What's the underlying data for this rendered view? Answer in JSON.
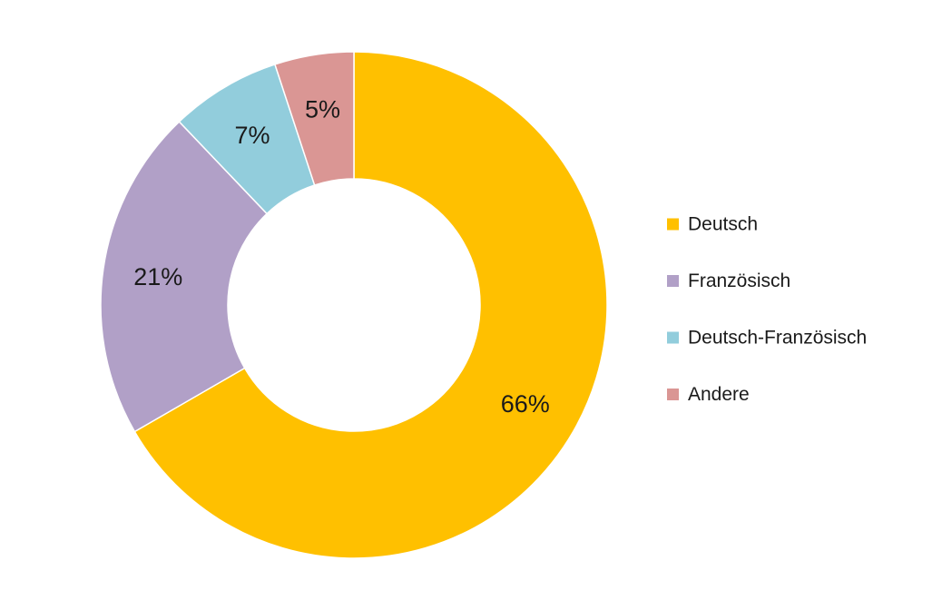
{
  "chart_data": {
    "type": "pie",
    "variant": "donut",
    "title": "",
    "labels": [
      "Deutsch",
      "Französisch",
      "Deutsch-Französisch",
      "Andere"
    ],
    "values": [
      66,
      21,
      7,
      5
    ],
    "value_labels": [
      "66%",
      "21%",
      "7%",
      "5%"
    ],
    "colors": [
      "#FFC000",
      "#B1A0C7",
      "#92CDDC",
      "#DA9694"
    ],
    "start_angle": "12 o'clock",
    "direction": "clockwise",
    "legend_position": "right"
  }
}
